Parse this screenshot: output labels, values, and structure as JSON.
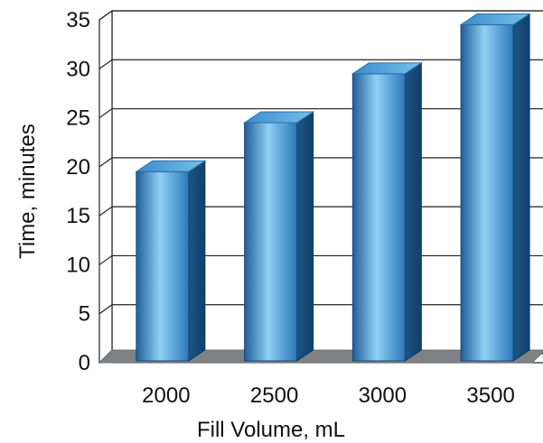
{
  "chart_data": {
    "type": "bar",
    "categories": [
      "2000",
      "2500",
      "3000",
      "3500"
    ],
    "values": [
      19.5,
      24.5,
      29.5,
      34.5
    ],
    "xlabel": "Fill Volume, mL",
    "ylabel": "Time, minutes",
    "ylim": [
      0,
      35
    ],
    "yticks": [
      "0",
      "5",
      "10",
      "15",
      "20",
      "25",
      "30",
      "35"
    ],
    "grid": true,
    "legend": "none",
    "colors": {
      "bar_front_dark": "#1f5f99",
      "bar_front_light": "#8fd0f5",
      "bar_side": "#164a78",
      "bar_top": "#4d9fdc",
      "floor": "#7f8285",
      "grid": "#222222"
    }
  }
}
